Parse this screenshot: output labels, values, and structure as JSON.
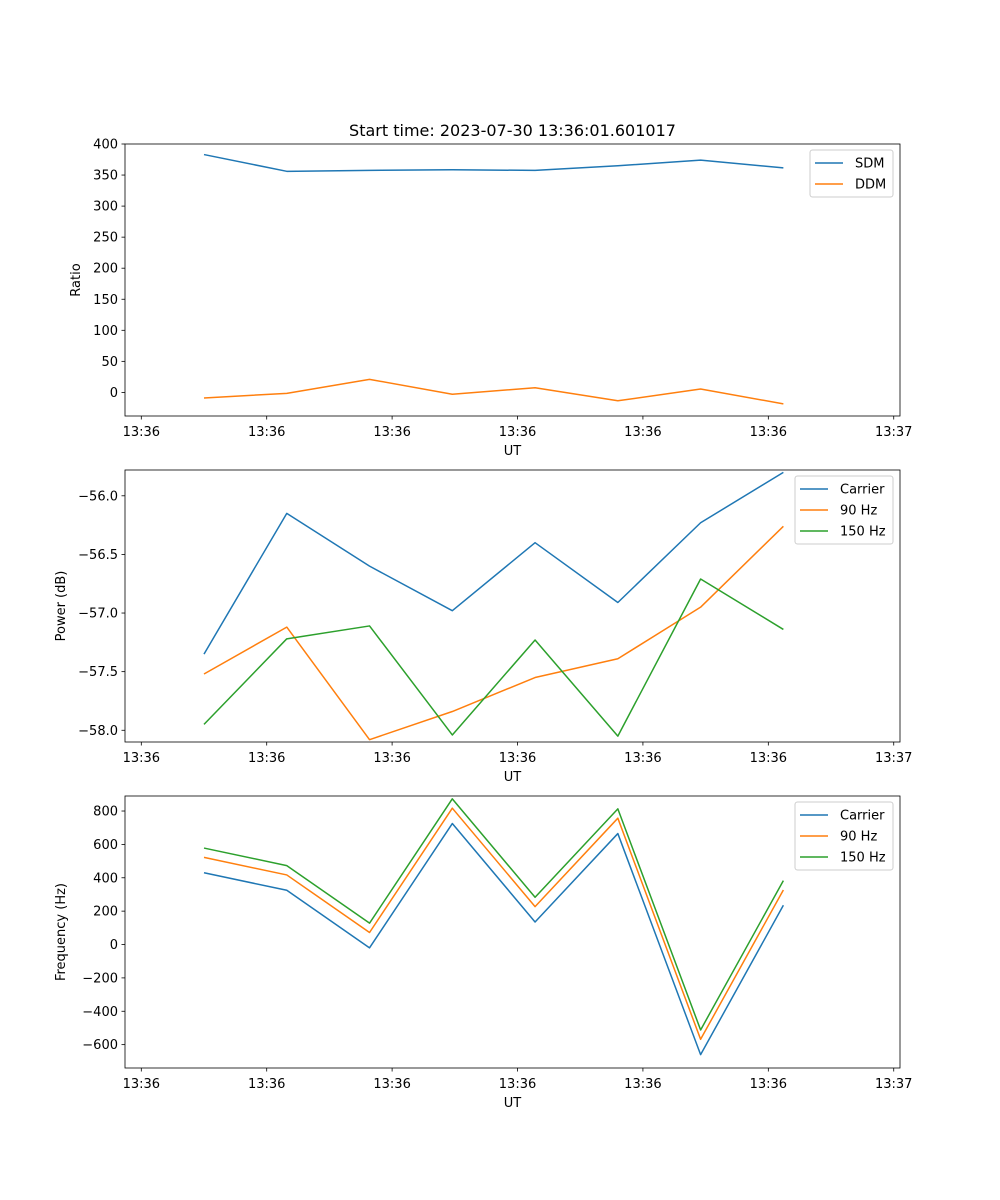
{
  "chart_data": [
    {
      "type": "line",
      "title": "Start time: 2023-07-30 13:36:01.601017",
      "xlabel": "UT",
      "ylabel": "Ratio",
      "ylim": [
        -38,
        400
      ],
      "yticks": [
        0,
        50,
        100,
        150,
        200,
        250,
        300,
        350,
        400
      ],
      "ytick_labels": [
        "0",
        "50",
        "100",
        "150",
        "200",
        "250",
        "300",
        "350",
        "400"
      ],
      "xlim": [
        -0.63,
        5.55
      ],
      "xticks": [
        -0.5,
        0.5,
        1.5,
        2.5,
        3.5,
        4.5,
        5.5
      ],
      "xtick_labels": [
        "13:36",
        "13:36",
        "13:36",
        "13:36",
        "13:36",
        "13:36",
        "13:37"
      ],
      "x": [
        0,
        0.66,
        1.32,
        1.98,
        2.64,
        3.3,
        3.96,
        4.62
      ],
      "legend_position": "top-right",
      "series": [
        {
          "name": "SDM",
          "color": "#1f77b4",
          "values": [
            383,
            356,
            357.5,
            358.5,
            357.5,
            365,
            374,
            361.5
          ]
        },
        {
          "name": "DDM",
          "color": "#ff7f0e",
          "values": [
            -9,
            -1.5,
            21,
            -3,
            7.5,
            -13.5,
            5.5,
            -18.5
          ]
        }
      ]
    },
    {
      "type": "line",
      "title": "",
      "xlabel": "UT",
      "ylabel": "Power (dB)",
      "ylim": [
        -58.1,
        -55.78
      ],
      "yticks": [
        -58.0,
        -57.5,
        -57.0,
        -56.5,
        -56.0
      ],
      "ytick_labels": [
        "−58.0",
        "−57.5",
        "−57.0",
        "−56.5",
        "−56.0"
      ],
      "xlim": [
        -0.63,
        5.55
      ],
      "xticks": [
        -0.5,
        0.5,
        1.5,
        2.5,
        3.5,
        4.5,
        5.5
      ],
      "xtick_labels": [
        "13:36",
        "13:36",
        "13:36",
        "13:36",
        "13:36",
        "13:36",
        "13:37"
      ],
      "x": [
        0,
        0.66,
        1.32,
        1.98,
        2.64,
        3.3,
        3.96,
        4.62
      ],
      "legend_position": "top-right",
      "series": [
        {
          "name": "Carrier",
          "color": "#1f77b4",
          "values": [
            -57.35,
            -56.15,
            -56.6,
            -56.98,
            -56.4,
            -56.91,
            -56.23,
            -55.8
          ]
        },
        {
          "name": "90 Hz",
          "color": "#ff7f0e",
          "values": [
            -57.52,
            -57.12,
            -58.08,
            -57.84,
            -57.55,
            -57.39,
            -56.95,
            -56.26
          ]
        },
        {
          "name": "150 Hz",
          "color": "#2ca02c",
          "values": [
            -57.95,
            -57.22,
            -57.11,
            -58.04,
            -57.23,
            -58.05,
            -56.71,
            -57.14
          ]
        }
      ]
    },
    {
      "type": "line",
      "title": "",
      "xlabel": "UT",
      "ylabel": "Frequency (Hz)",
      "ylim": [
        -740,
        890
      ],
      "yticks": [
        -600,
        -400,
        -200,
        0,
        200,
        400,
        600,
        800
      ],
      "ytick_labels": [
        "−600",
        "−400",
        "−200",
        "0",
        "200",
        "400",
        "600",
        "800"
      ],
      "xlim": [
        -0.63,
        5.55
      ],
      "xticks": [
        -0.5,
        0.5,
        1.5,
        2.5,
        3.5,
        4.5,
        5.5
      ],
      "xtick_labels": [
        "13:36",
        "13:36",
        "13:36",
        "13:36",
        "13:36",
        "13:36",
        "13:37"
      ],
      "x": [
        0,
        0.66,
        1.32,
        1.98,
        2.64,
        3.3,
        3.96,
        4.62
      ],
      "legend_position": "top-right",
      "series": [
        {
          "name": "Carrier",
          "color": "#1f77b4",
          "values": [
            430,
            325,
            -20,
            725,
            135,
            665,
            -660,
            235
          ]
        },
        {
          "name": "90 Hz",
          "color": "#ff7f0e",
          "values": [
            522,
            417,
            72,
            817,
            227,
            757,
            -568,
            327
          ]
        },
        {
          "name": "150 Hz",
          "color": "#2ca02c",
          "values": [
            578,
            473,
            128,
            873,
            283,
            813,
            -512,
            383
          ]
        }
      ]
    }
  ]
}
